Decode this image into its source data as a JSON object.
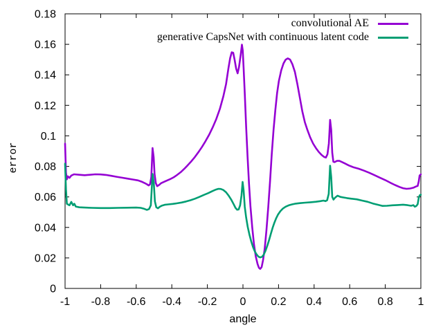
{
  "chart_data": {
    "type": "line",
    "title": "",
    "xlabel": "angle",
    "ylabel": "error",
    "xlim": [
      -1,
      1
    ],
    "ylim": [
      0,
      0.18
    ],
    "grid": false,
    "legend_position": "top-right-inside",
    "background_color": "#ffffff",
    "axis_color": "#000000",
    "x_tick_values": [
      -1,
      -0.8,
      -0.6,
      -0.4,
      -0.2,
      0,
      0.2,
      0.4,
      0.6,
      0.8,
      1
    ],
    "x_tick_labels": [
      "-1",
      "-0.8",
      "-0.6",
      "-0.4",
      "-0.2",
      "0",
      "0.2",
      "0.4",
      "0.6",
      "0.8",
      "1"
    ],
    "y_tick_values": [
      0,
      0.02,
      0.04,
      0.06,
      0.08,
      0.1,
      0.12,
      0.14,
      0.16,
      0.18
    ],
    "y_tick_labels": [
      "0",
      "0.02",
      "0.04",
      "0.06",
      "0.08",
      "0.1",
      "0.12",
      "0.14",
      "0.16",
      "0.18"
    ],
    "series": [
      {
        "name": "convolutional AE",
        "color": "#9400d3",
        "points": [
          [
            -1.0,
            0.095
          ],
          [
            -0.995,
            0.076
          ],
          [
            -0.99,
            0.0715
          ],
          [
            -0.985,
            0.0735
          ],
          [
            -0.975,
            0.0725
          ],
          [
            -0.965,
            0.074
          ],
          [
            -0.95,
            0.0748
          ],
          [
            -0.92,
            0.0745
          ],
          [
            -0.89,
            0.0742
          ],
          [
            -0.86,
            0.0745
          ],
          [
            -0.83,
            0.0748
          ],
          [
            -0.8,
            0.0747
          ],
          [
            -0.77,
            0.0744
          ],
          [
            -0.74,
            0.0738
          ],
          [
            -0.71,
            0.0732
          ],
          [
            -0.68,
            0.0726
          ],
          [
            -0.65,
            0.072
          ],
          [
            -0.62,
            0.0714
          ],
          [
            -0.59,
            0.0708
          ],
          [
            -0.57,
            0.07
          ],
          [
            -0.555,
            0.0692
          ],
          [
            -0.54,
            0.0683
          ],
          [
            -0.53,
            0.0675
          ],
          [
            -0.522,
            0.0683
          ],
          [
            -0.515,
            0.073
          ],
          [
            -0.508,
            0.092
          ],
          [
            -0.502,
            0.086
          ],
          [
            -0.497,
            0.075
          ],
          [
            -0.49,
            0.069
          ],
          [
            -0.482,
            0.067
          ],
          [
            -0.472,
            0.0678
          ],
          [
            -0.46,
            0.069
          ],
          [
            -0.445,
            0.0698
          ],
          [
            -0.43,
            0.0706
          ],
          [
            -0.41,
            0.0716
          ],
          [
            -0.39,
            0.0728
          ],
          [
            -0.37,
            0.0744
          ],
          [
            -0.35,
            0.0762
          ],
          [
            -0.33,
            0.0784
          ],
          [
            -0.31,
            0.0808
          ],
          [
            -0.29,
            0.0834
          ],
          [
            -0.27,
            0.0862
          ],
          [
            -0.25,
            0.0894
          ],
          [
            -0.23,
            0.0928
          ],
          [
            -0.21,
            0.0966
          ],
          [
            -0.19,
            0.1008
          ],
          [
            -0.17,
            0.1056
          ],
          [
            -0.15,
            0.111
          ],
          [
            -0.13,
            0.1176
          ],
          [
            -0.11,
            0.126
          ],
          [
            -0.095,
            0.134
          ],
          [
            -0.082,
            0.144
          ],
          [
            -0.072,
            0.151
          ],
          [
            -0.063,
            0.1548
          ],
          [
            -0.055,
            0.1545
          ],
          [
            -0.047,
            0.15
          ],
          [
            -0.038,
            0.144
          ],
          [
            -0.03,
            0.141
          ],
          [
            -0.022,
            0.1452
          ],
          [
            -0.013,
            0.153
          ],
          [
            -0.006,
            0.1598
          ],
          [
            -0.001,
            0.156
          ],
          [
            0.004,
            0.144
          ],
          [
            0.01,
            0.128
          ],
          [
            0.018,
            0.106
          ],
          [
            0.026,
            0.086
          ],
          [
            0.034,
            0.069
          ],
          [
            0.042,
            0.054
          ],
          [
            0.052,
            0.04
          ],
          [
            0.062,
            0.029
          ],
          [
            0.072,
            0.021
          ],
          [
            0.082,
            0.016
          ],
          [
            0.09,
            0.0135
          ],
          [
            0.097,
            0.0128
          ],
          [
            0.105,
            0.014
          ],
          [
            0.113,
            0.0185
          ],
          [
            0.122,
            0.026
          ],
          [
            0.132,
            0.038
          ],
          [
            0.142,
            0.053
          ],
          [
            0.152,
            0.07
          ],
          [
            0.162,
            0.088
          ],
          [
            0.172,
            0.104
          ],
          [
            0.182,
            0.117
          ],
          [
            0.192,
            0.128
          ],
          [
            0.202,
            0.136
          ],
          [
            0.215,
            0.143
          ],
          [
            0.228,
            0.1475
          ],
          [
            0.24,
            0.15
          ],
          [
            0.252,
            0.1508
          ],
          [
            0.265,
            0.15
          ],
          [
            0.278,
            0.147
          ],
          [
            0.292,
            0.142
          ],
          [
            0.306,
            0.134
          ],
          [
            0.32,
            0.125
          ],
          [
            0.334,
            0.116
          ],
          [
            0.348,
            0.109
          ],
          [
            0.362,
            0.104
          ],
          [
            0.378,
            0.099
          ],
          [
            0.394,
            0.095
          ],
          [
            0.41,
            0.092
          ],
          [
            0.426,
            0.0895
          ],
          [
            0.442,
            0.0875
          ],
          [
            0.456,
            0.0862
          ],
          [
            0.466,
            0.0858
          ],
          [
            0.475,
            0.088
          ],
          [
            0.483,
            0.095
          ],
          [
            0.49,
            0.1105
          ],
          [
            0.496,
            0.104
          ],
          [
            0.502,
            0.089
          ],
          [
            0.508,
            0.083
          ],
          [
            0.515,
            0.0828
          ],
          [
            0.528,
            0.0836
          ],
          [
            0.542,
            0.0836
          ],
          [
            0.558,
            0.0828
          ],
          [
            0.575,
            0.0818
          ],
          [
            0.595,
            0.0806
          ],
          [
            0.62,
            0.0795
          ],
          [
            0.65,
            0.0785
          ],
          [
            0.68,
            0.0772
          ],
          [
            0.71,
            0.0758
          ],
          [
            0.74,
            0.0742
          ],
          [
            0.77,
            0.0726
          ],
          [
            0.8,
            0.071
          ],
          [
            0.83,
            0.0692
          ],
          [
            0.855,
            0.0678
          ],
          [
            0.88,
            0.0665
          ],
          [
            0.9,
            0.0657
          ],
          [
            0.92,
            0.0653
          ],
          [
            0.94,
            0.0655
          ],
          [
            0.958,
            0.066
          ],
          [
            0.972,
            0.0668
          ],
          [
            0.982,
            0.0672
          ],
          [
            0.988,
            0.07
          ],
          [
            0.993,
            0.074
          ],
          [
            1.0,
            0.0748
          ]
        ]
      },
      {
        "name": "generative CapsNet with continuous latent code",
        "color": "#009e73",
        "points": [
          [
            -1.0,
            0.0818
          ],
          [
            -0.995,
            0.065
          ],
          [
            -0.99,
            0.0555
          ],
          [
            -0.983,
            0.055
          ],
          [
            -0.975,
            0.0545
          ],
          [
            -0.965,
            0.0567
          ],
          [
            -0.955,
            0.0545
          ],
          [
            -0.948,
            0.0555
          ],
          [
            -0.94,
            0.0537
          ],
          [
            -0.92,
            0.0532
          ],
          [
            -0.89,
            0.053
          ],
          [
            -0.85,
            0.0528
          ],
          [
            -0.8,
            0.0527
          ],
          [
            -0.75,
            0.0527
          ],
          [
            -0.7,
            0.0528
          ],
          [
            -0.65,
            0.0529
          ],
          [
            -0.6,
            0.053
          ],
          [
            -0.575,
            0.0528
          ],
          [
            -0.555,
            0.0522
          ],
          [
            -0.54,
            0.0515
          ],
          [
            -0.528,
            0.052
          ],
          [
            -0.518,
            0.0545
          ],
          [
            -0.508,
            0.075
          ],
          [
            -0.501,
            0.069
          ],
          [
            -0.495,
            0.057
          ],
          [
            -0.487,
            0.0532
          ],
          [
            -0.478,
            0.0525
          ],
          [
            -0.468,
            0.0535
          ],
          [
            -0.455,
            0.0543
          ],
          [
            -0.44,
            0.0548
          ],
          [
            -0.42,
            0.0551
          ],
          [
            -0.395,
            0.0554
          ],
          [
            -0.37,
            0.0558
          ],
          [
            -0.345,
            0.0563
          ],
          [
            -0.32,
            0.057
          ],
          [
            -0.295,
            0.0578
          ],
          [
            -0.27,
            0.0588
          ],
          [
            -0.245,
            0.06
          ],
          [
            -0.22,
            0.0613
          ],
          [
            -0.195,
            0.0625
          ],
          [
            -0.172,
            0.0638
          ],
          [
            -0.152,
            0.0648
          ],
          [
            -0.138,
            0.0653
          ],
          [
            -0.125,
            0.0652
          ],
          [
            -0.11,
            0.0645
          ],
          [
            -0.095,
            0.063
          ],
          [
            -0.08,
            0.0608
          ],
          [
            -0.065,
            0.058
          ],
          [
            -0.052,
            0.0552
          ],
          [
            -0.042,
            0.0528
          ],
          [
            -0.033,
            0.0516
          ],
          [
            -0.024,
            0.0518
          ],
          [
            -0.016,
            0.0545
          ],
          [
            -0.008,
            0.061
          ],
          [
            -0.002,
            0.0698
          ],
          [
            0.004,
            0.064
          ],
          [
            0.01,
            0.0535
          ],
          [
            0.018,
            0.0465
          ],
          [
            0.027,
            0.0403
          ],
          [
            0.037,
            0.035
          ],
          [
            0.047,
            0.0306
          ],
          [
            0.057,
            0.027
          ],
          [
            0.067,
            0.0242
          ],
          [
            0.077,
            0.0222
          ],
          [
            0.087,
            0.0208
          ],
          [
            0.097,
            0.0203
          ],
          [
            0.107,
            0.0207
          ],
          [
            0.117,
            0.0222
          ],
          [
            0.127,
            0.0247
          ],
          [
            0.137,
            0.028
          ],
          [
            0.147,
            0.0318
          ],
          [
            0.157,
            0.0358
          ],
          [
            0.167,
            0.0398
          ],
          [
            0.177,
            0.0432
          ],
          [
            0.187,
            0.0461
          ],
          [
            0.197,
            0.0484
          ],
          [
            0.21,
            0.0506
          ],
          [
            0.225,
            0.0524
          ],
          [
            0.24,
            0.0536
          ],
          [
            0.258,
            0.0545
          ],
          [
            0.276,
            0.0551
          ],
          [
            0.296,
            0.0556
          ],
          [
            0.32,
            0.0559
          ],
          [
            0.35,
            0.0562
          ],
          [
            0.38,
            0.0565
          ],
          [
            0.41,
            0.0568
          ],
          [
            0.435,
            0.0572
          ],
          [
            0.452,
            0.0576
          ],
          [
            0.464,
            0.0572
          ],
          [
            0.473,
            0.0578
          ],
          [
            0.482,
            0.062
          ],
          [
            0.49,
            0.0805
          ],
          [
            0.496,
            0.073
          ],
          [
            0.502,
            0.06
          ],
          [
            0.509,
            0.0582
          ],
          [
            0.518,
            0.0595
          ],
          [
            0.532,
            0.0608
          ],
          [
            0.548,
            0.06
          ],
          [
            0.565,
            0.0596
          ],
          [
            0.585,
            0.0592
          ],
          [
            0.61,
            0.0588
          ],
          [
            0.64,
            0.0584
          ],
          [
            0.67,
            0.0576
          ],
          [
            0.7,
            0.0568
          ],
          [
            0.73,
            0.0557
          ],
          [
            0.76,
            0.0548
          ],
          [
            0.785,
            0.0541
          ],
          [
            0.81,
            0.0542
          ],
          [
            0.84,
            0.0545
          ],
          [
            0.87,
            0.0547
          ],
          [
            0.9,
            0.0549
          ],
          [
            0.925,
            0.0546
          ],
          [
            0.945,
            0.0542
          ],
          [
            0.958,
            0.0546
          ],
          [
            0.966,
            0.0536
          ],
          [
            0.974,
            0.054
          ],
          [
            0.982,
            0.0552
          ],
          [
            0.989,
            0.06
          ],
          [
            0.995,
            0.0612
          ],
          [
            1.0,
            0.0614
          ]
        ]
      }
    ]
  }
}
